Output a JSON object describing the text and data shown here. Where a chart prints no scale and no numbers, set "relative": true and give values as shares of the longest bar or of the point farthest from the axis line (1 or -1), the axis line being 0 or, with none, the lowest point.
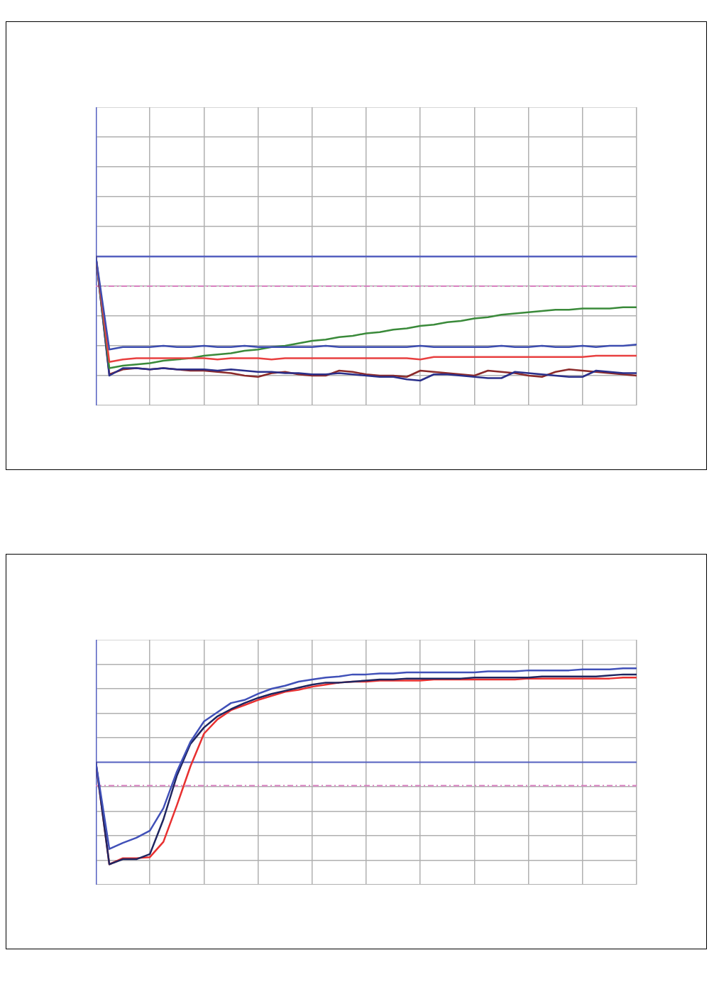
{
  "chart_data": [
    {
      "type": "line",
      "relative": true,
      "grid": true,
      "legend": false,
      "marker": "none",
      "line_style": "solid",
      "categories": [
        null,
        null,
        null,
        null,
        null,
        null,
        null,
        null,
        null,
        null,
        null,
        null,
        null,
        null,
        null,
        null,
        null,
        null,
        null,
        null,
        null,
        null,
        null,
        null,
        null,
        null,
        null,
        null,
        null,
        null,
        null,
        null,
        null,
        null,
        null,
        null,
        null,
        null,
        null,
        null,
        null
      ],
      "series": [
        {
          "color": "#3d4db0",
          "values": [
            0,
            -0.75,
            -0.73,
            -0.73,
            -0.73,
            -0.72,
            -0.73,
            -0.73,
            -0.72,
            -0.73,
            -0.73,
            -0.72,
            -0.73,
            -0.73,
            -0.73,
            -0.73,
            -0.73,
            -0.72,
            -0.73,
            -0.73,
            -0.73,
            -0.73,
            -0.73,
            -0.73,
            -0.72,
            -0.73,
            -0.73,
            -0.73,
            -0.73,
            -0.73,
            -0.72,
            -0.73,
            -0.73,
            -0.72,
            -0.73,
            -0.73,
            -0.72,
            -0.73,
            -0.72,
            -0.72,
            -0.71
          ]
        },
        {
          "color": "#e84040",
          "values": [
            0,
            -0.85,
            -0.83,
            -0.82,
            -0.82,
            -0.82,
            -0.82,
            -0.82,
            -0.82,
            -0.83,
            -0.82,
            -0.82,
            -0.82,
            -0.83,
            -0.82,
            -0.82,
            -0.82,
            -0.82,
            -0.82,
            -0.82,
            -0.82,
            -0.82,
            -0.82,
            -0.82,
            -0.83,
            -0.81,
            -0.81,
            -0.81,
            -0.81,
            -0.81,
            -0.81,
            -0.81,
            -0.81,
            -0.81,
            -0.81,
            -0.81,
            -0.81,
            -0.8,
            -0.8,
            -0.8,
            -0.8
          ]
        },
        {
          "color": "#3a8a3a",
          "values": [
            0,
            -0.9,
            -0.88,
            -0.87,
            -0.86,
            -0.84,
            -0.83,
            -0.82,
            -0.8,
            -0.79,
            -0.78,
            -0.76,
            -0.75,
            -0.73,
            -0.72,
            -0.7,
            -0.68,
            -0.67,
            -0.65,
            -0.64,
            -0.62,
            -0.61,
            -0.59,
            -0.58,
            -0.56,
            -0.55,
            -0.53,
            -0.52,
            -0.5,
            -0.49,
            -0.47,
            -0.46,
            -0.45,
            -0.44,
            -0.43,
            -0.43,
            -0.42,
            -0.42,
            -0.42,
            -0.41,
            -0.41
          ]
        },
        {
          "color": "#2a2f8a",
          "values": [
            0,
            -0.96,
            -0.9,
            -0.9,
            -0.91,
            -0.9,
            -0.91,
            -0.91,
            -0.91,
            -0.92,
            -0.91,
            -0.92,
            -0.93,
            -0.93,
            -0.94,
            -0.94,
            -0.95,
            -0.95,
            -0.94,
            -0.95,
            -0.96,
            -0.97,
            -0.97,
            -0.99,
            -1.0,
            -0.95,
            -0.95,
            -0.96,
            -0.97,
            -0.98,
            -0.98,
            -0.93,
            -0.94,
            -0.95,
            -0.96,
            -0.97,
            -0.97,
            -0.92,
            -0.93,
            -0.94,
            -0.94
          ]
        },
        {
          "color": "#8b2a2a",
          "values": [
            0,
            -0.95,
            -0.91,
            -0.9,
            -0.91,
            -0.9,
            -0.91,
            -0.92,
            -0.92,
            -0.93,
            -0.94,
            -0.96,
            -0.97,
            -0.94,
            -0.93,
            -0.95,
            -0.96,
            -0.96,
            -0.92,
            -0.93,
            -0.95,
            -0.96,
            -0.96,
            -0.97,
            -0.92,
            -0.93,
            -0.94,
            -0.95,
            -0.96,
            -0.92,
            -0.93,
            -0.94,
            -0.96,
            -0.97,
            -0.93,
            -0.91,
            -0.92,
            -0.93,
            -0.94,
            -0.95,
            -0.96
          ]
        }
      ],
      "ref_lines": [
        {
          "axis": "y",
          "value": -0.24,
          "color": "#d77fbf",
          "line_style": "dashed"
        }
      ]
    },
    {
      "type": "line",
      "relative": true,
      "grid": true,
      "legend": false,
      "marker": "none",
      "line_style": "solid",
      "categories": [
        null,
        null,
        null,
        null,
        null,
        null,
        null,
        null,
        null,
        null,
        null,
        null,
        null,
        null,
        null,
        null,
        null,
        null,
        null,
        null,
        null,
        null,
        null,
        null,
        null,
        null,
        null,
        null,
        null,
        null,
        null,
        null,
        null,
        null,
        null,
        null,
        null,
        null,
        null,
        null,
        null
      ],
      "series": [
        {
          "color": "#4050b8",
          "values": [
            0,
            -0.85,
            -0.79,
            -0.74,
            -0.67,
            -0.45,
            -0.09,
            0.2,
            0.4,
            0.49,
            0.58,
            0.61,
            0.67,
            0.72,
            0.75,
            0.79,
            0.81,
            0.83,
            0.84,
            0.86,
            0.86,
            0.87,
            0.87,
            0.88,
            0.88,
            0.88,
            0.88,
            0.88,
            0.88,
            0.89,
            0.89,
            0.89,
            0.9,
            0.9,
            0.9,
            0.9,
            0.91,
            0.91,
            0.91,
            0.92,
            0.92
          ]
        },
        {
          "color": "#1f2560",
          "values": [
            0,
            -1.0,
            -0.95,
            -0.95,
            -0.9,
            -0.56,
            -0.13,
            0.18,
            0.34,
            0.45,
            0.52,
            0.58,
            0.63,
            0.67,
            0.7,
            0.73,
            0.76,
            0.78,
            0.78,
            0.79,
            0.8,
            0.81,
            0.81,
            0.82,
            0.82,
            0.82,
            0.82,
            0.82,
            0.83,
            0.83,
            0.83,
            0.83,
            0.83,
            0.84,
            0.84,
            0.84,
            0.84,
            0.84,
            0.85,
            0.86,
            0.86
          ]
        },
        {
          "color": "#e83030",
          "values": [
            0,
            -1.0,
            -0.94,
            -0.94,
            -0.93,
            -0.78,
            -0.42,
            -0.04,
            0.28,
            0.42,
            0.51,
            0.56,
            0.61,
            0.65,
            0.69,
            0.71,
            0.74,
            0.76,
            0.78,
            0.79,
            0.79,
            0.8,
            0.8,
            0.8,
            0.8,
            0.81,
            0.81,
            0.81,
            0.81,
            0.81,
            0.81,
            0.81,
            0.82,
            0.82,
            0.82,
            0.82,
            0.82,
            0.82,
            0.82,
            0.83,
            0.83
          ]
        }
      ],
      "ref_lines": [
        {
          "axis": "y",
          "value": 0,
          "color": "#5560c0",
          "line_style": "solid"
        },
        {
          "axis": "y",
          "value": -0.23,
          "color": "#d77fbf",
          "line_style": "dashed"
        }
      ]
    }
  ]
}
